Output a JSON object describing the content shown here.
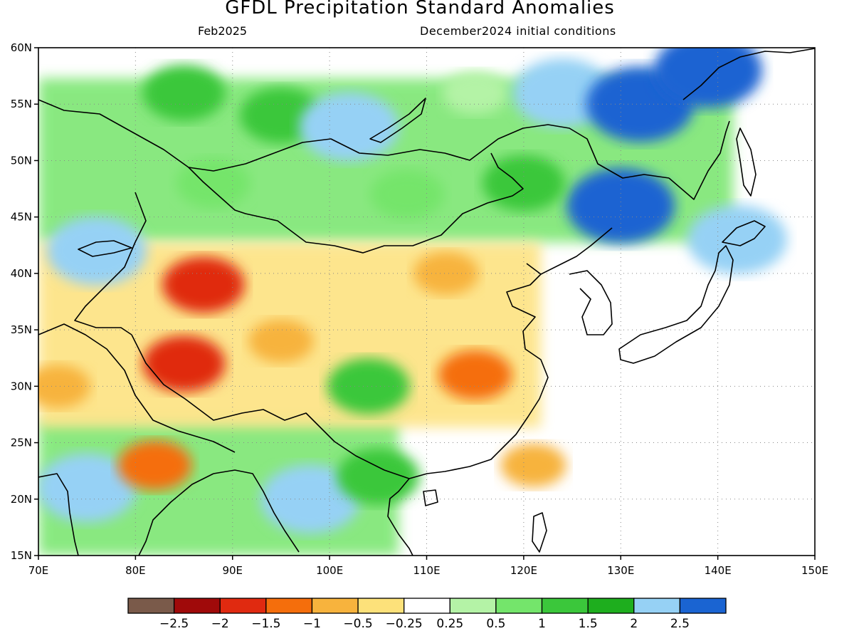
{
  "header": {
    "title": "GFDL Precipitation Standard Anomalies",
    "valid_month": "Feb2025",
    "initial_conditions": "December2024 initial conditions"
  },
  "map": {
    "lon_range": [
      70,
      150
    ],
    "lat_range": [
      15,
      60
    ],
    "gridlines": "dotted",
    "lon_ticks": [
      "70E",
      "80E",
      "90E",
      "100E",
      "110E",
      "120E",
      "130E",
      "140E",
      "150E"
    ],
    "lat_ticks": [
      "60N",
      "55N",
      "50N",
      "45N",
      "40N",
      "35N",
      "30N",
      "25N",
      "20N",
      "15N"
    ],
    "regions": [
      {
        "lon": 85,
        "lat": 56,
        "value": 1.5
      },
      {
        "lon": 95,
        "lat": 54,
        "value": 1.5
      },
      {
        "lon": 102,
        "lat": 53,
        "value": 2.5
      },
      {
        "lon": 115,
        "lat": 56,
        "value": 0.5
      },
      {
        "lon": 124,
        "lat": 56,
        "value": 2.5
      },
      {
        "lon": 132,
        "lat": 55,
        "value": 3.0
      },
      {
        "lon": 139,
        "lat": 58,
        "value": 3.0
      },
      {
        "lon": 130,
        "lat": 46,
        "value": 3.0
      },
      {
        "lon": 120,
        "lat": 48,
        "value": 1.5
      },
      {
        "lon": 108,
        "lat": 47,
        "value": 1.0
      },
      {
        "lon": 88,
        "lat": 48,
        "value": 1.0
      },
      {
        "lon": 76,
        "lat": 42,
        "value": 2.5
      },
      {
        "lon": 87,
        "lat": 39,
        "value": -1.5
      },
      {
        "lon": 85,
        "lat": 32,
        "value": -1.5
      },
      {
        "lon": 95,
        "lat": 34,
        "value": -0.5
      },
      {
        "lon": 104,
        "lat": 30,
        "value": 1.5
      },
      {
        "lon": 115,
        "lat": 31,
        "value": -1.0
      },
      {
        "lon": 112,
        "lat": 40,
        "value": -0.5
      },
      {
        "lon": 75,
        "lat": 21,
        "value": 2.5
      },
      {
        "lon": 82,
        "lat": 23,
        "value": -1.0
      },
      {
        "lon": 98,
        "lat": 20,
        "value": 2.5
      },
      {
        "lon": 105,
        "lat": 22,
        "value": 1.5
      },
      {
        "lon": 72,
        "lat": 30,
        "value": -0.5
      },
      {
        "lon": 142,
        "lat": 43,
        "value": 2.5
      },
      {
        "lon": 121,
        "lat": 23,
        "value": -0.5
      }
    ]
  },
  "colorbar": {
    "colors": [
      "#7a5a4a",
      "#a00a0a",
      "#e02a10",
      "#f56e0c",
      "#f7b33d",
      "#fde17a",
      "#ffffff",
      "#b4f3a6",
      "#74e56b",
      "#3bc73b",
      "#1eae1e",
      "#96d1f5",
      "#1a64d2"
    ],
    "labels": [
      "−2.5",
      "−2",
      "−1.5",
      "−1",
      "−0.5",
      "−0.25",
      "0.25",
      "0.5",
      "1",
      "1.5",
      "2",
      "2.5"
    ]
  }
}
